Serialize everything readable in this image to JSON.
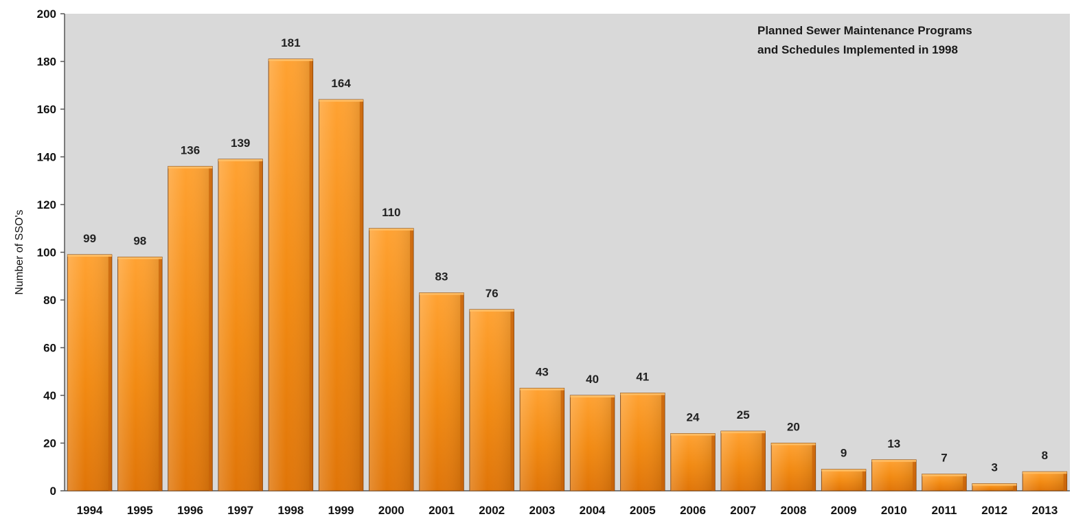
{
  "chart_data": {
    "type": "bar",
    "title": "",
    "xlabel": "",
    "ylabel": "Number of SSO's",
    "categories": [
      "1994",
      "1995",
      "1996",
      "1997",
      "1998",
      "1999",
      "2000",
      "2001",
      "2002",
      "2003",
      "2004",
      "2005",
      "2006",
      "2007",
      "2008",
      "2009",
      "2010",
      "2011",
      "2012",
      "2013"
    ],
    "values": [
      99,
      98,
      136,
      139,
      181,
      164,
      110,
      83,
      76,
      43,
      40,
      41,
      24,
      25,
      20,
      9,
      13,
      7,
      3,
      8
    ],
    "ylim": [
      0,
      200
    ],
    "yticks": [
      0,
      20,
      40,
      60,
      80,
      100,
      120,
      140,
      160,
      180,
      200
    ],
    "grid": false,
    "data_labels": true,
    "annotation": [
      "Planned Sewer Maintenance Programs",
      "and Schedules Implemented in 1998"
    ],
    "colors": {
      "plot_background": "#d9d9d9",
      "bar_light": "#ffa232",
      "bar_mid": "#f28a12",
      "bar_dark": "#c7620a",
      "bar_edge": "#7a3c05"
    }
  }
}
